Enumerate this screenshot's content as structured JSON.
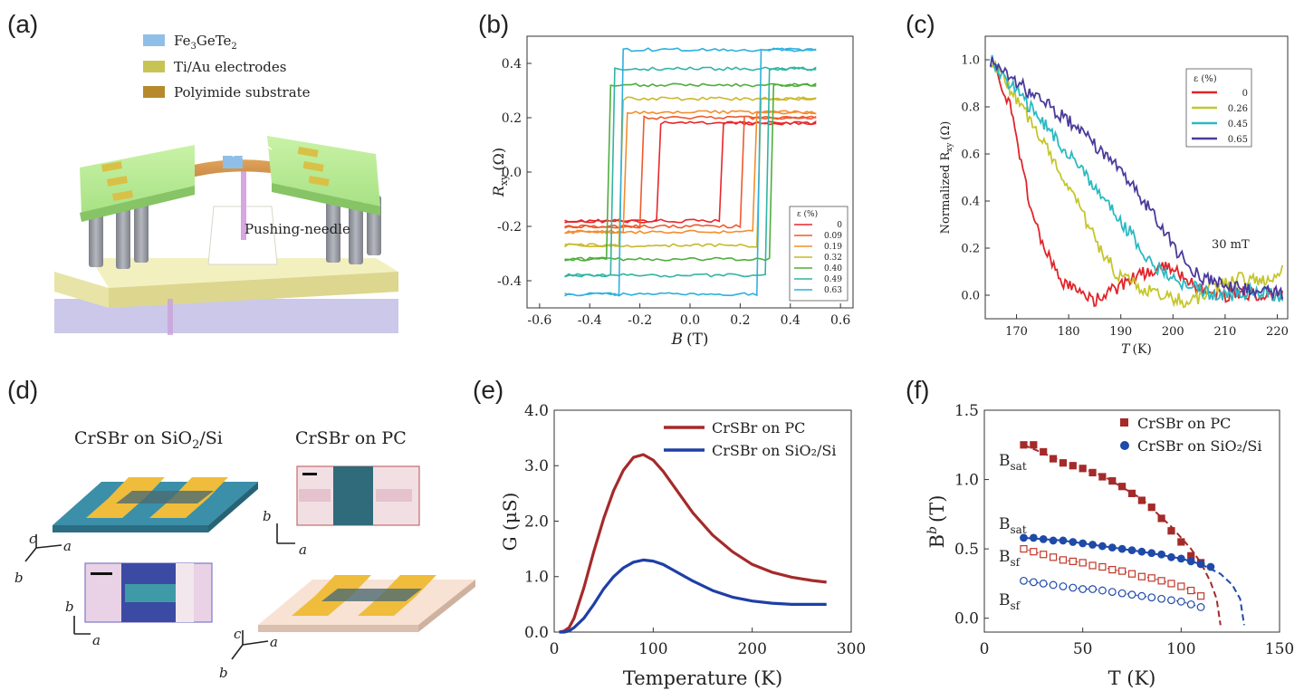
{
  "panels": {
    "a": {
      "label": "(a)",
      "legend": [
        {
          "text": "Fe3GeTe2",
          "parts": [
            "Fe",
            "3",
            "GeTe",
            "2"
          ],
          "color": "#8fbfe8"
        },
        {
          "text": "Ti/Au electrodes",
          "color": "#c7c456"
        },
        {
          "text": "Polyimide substrate",
          "color": "#b68a2c"
        }
      ],
      "needle_label": "Pushing-needle"
    },
    "d": {
      "label": "(d)",
      "title_left": "CrSBr on SiO2/Si",
      "title_left_parts": [
        "CrSBr on SiO",
        "2",
        "/Si"
      ],
      "title_right": "CrSBr on PC",
      "axes": {
        "a": "a",
        "b": "b",
        "c": "c"
      }
    }
  },
  "chart_data": [
    {
      "panel": "(b)",
      "type": "line",
      "xlabel_main": "B",
      "xlabel_unit": "(T)",
      "ylabel_main": "R",
      "ylabel_sub": "xy",
      "ylabel_unit": "(Ω)",
      "xlim": [
        -0.65,
        0.65
      ],
      "ylim": [
        -0.5,
        0.5
      ],
      "xticks": [
        "-0.6",
        "-0.4",
        "-0.2",
        "0.0",
        "0.2",
        "0.4",
        "0.6"
      ],
      "yticks": [
        "-0.4",
        "-0.2",
        "0.0",
        "0.2",
        "0.4"
      ],
      "legend_title": "ε (%)",
      "series": [
        {
          "name": "0",
          "color": "#e8262b",
          "coercive": 0.12,
          "saturation": 0.18
        },
        {
          "name": "0.09",
          "color": "#ee5a2e",
          "coercive": 0.2,
          "saturation": 0.2
        },
        {
          "name": "0.19",
          "color": "#f28d2f",
          "coercive": 0.26,
          "saturation": 0.22
        },
        {
          "name": "0.32",
          "color": "#c9b92c",
          "coercive": 0.28,
          "saturation": 0.27
        },
        {
          "name": "0.40",
          "color": "#4fae3c",
          "coercive": 0.33,
          "saturation": 0.32
        },
        {
          "name": "0.49",
          "color": "#30b4a4",
          "coercive": 0.31,
          "saturation": 0.38
        },
        {
          "name": "0.63",
          "color": "#2fb0dc",
          "coercive": 0.28,
          "saturation": 0.45
        }
      ]
    },
    {
      "panel": "(c)",
      "type": "line",
      "xlabel_main": "T",
      "xlabel_unit": "(K)",
      "ylabel_main": "Normalized R",
      "ylabel_sub": "xy",
      "ylabel_unit": "(Ω)",
      "xlim": [
        164,
        222
      ],
      "ylim": [
        -0.1,
        1.1
      ],
      "xticks": [
        "170",
        "180",
        "190",
        "200",
        "210",
        "220"
      ],
      "yticks": [
        "0.0",
        "0.2",
        "0.4",
        "0.6",
        "0.8",
        "1.0"
      ],
      "legend_title": "ε (%)",
      "annotation": "30 mT",
      "series": [
        {
          "name": "0",
          "color": "#e0252a",
          "x": [
            165,
            167,
            169,
            171,
            173,
            175,
            177,
            179,
            181,
            183,
            185,
            187,
            190,
            195,
            200,
            205,
            210,
            215,
            221
          ],
          "y": [
            1.0,
            0.9,
            0.78,
            0.55,
            0.35,
            0.22,
            0.12,
            0.05,
            0.02,
            0.0,
            -0.02,
            0.0,
            0.04,
            0.1,
            0.12,
            0.02,
            0.0,
            0.01,
            0.0
          ]
        },
        {
          "name": "0.26",
          "color": "#c5c62d",
          "x": [
            165,
            168,
            171,
            174,
            177,
            180,
            183,
            186,
            189,
            192,
            195,
            198,
            201,
            204,
            207,
            210,
            213,
            216,
            219,
            221
          ],
          "y": [
            1.0,
            0.9,
            0.8,
            0.7,
            0.58,
            0.46,
            0.33,
            0.2,
            0.1,
            0.05,
            0.02,
            0.0,
            -0.02,
            -0.03,
            0.03,
            0.05,
            0.07,
            0.06,
            0.08,
            0.1
          ]
        },
        {
          "name": "0.45",
          "color": "#2bb9c3",
          "x": [
            165,
            168,
            171,
            174,
            177,
            180,
            183,
            186,
            189,
            192,
            195,
            198,
            201,
            204,
            207,
            210,
            213,
            216,
            219,
            221
          ],
          "y": [
            1.0,
            0.92,
            0.84,
            0.76,
            0.68,
            0.6,
            0.52,
            0.43,
            0.34,
            0.26,
            0.16,
            0.1,
            0.05,
            0.03,
            0.01,
            0.0,
            0.01,
            0.02,
            0.0,
            0.0
          ]
        },
        {
          "name": "0.65",
          "color": "#4b3a9c",
          "x": [
            165,
            168,
            171,
            174,
            177,
            180,
            183,
            186,
            189,
            192,
            195,
            198,
            201,
            204,
            207,
            210,
            213,
            216,
            219,
            221
          ],
          "y": [
            1.0,
            0.95,
            0.89,
            0.84,
            0.79,
            0.74,
            0.68,
            0.62,
            0.55,
            0.47,
            0.38,
            0.28,
            0.18,
            0.1,
            0.06,
            0.04,
            0.03,
            0.02,
            0.01,
            0.0
          ]
        }
      ]
    },
    {
      "panel": "(e)",
      "type": "line",
      "xlabel": "Temperature (K)",
      "ylabel": "G (μS)",
      "xlim": [
        0,
        300
      ],
      "ylim": [
        0,
        4.0
      ],
      "xticks": [
        "0",
        "100",
        "200",
        "300"
      ],
      "yticks": [
        "0.0",
        "1.0",
        "2.0",
        "3.0",
        "4.0"
      ],
      "series": [
        {
          "name": "CrSBr on PC",
          "color": "#a52a2a",
          "x": [
            5,
            10,
            15,
            20,
            30,
            40,
            50,
            60,
            70,
            80,
            90,
            100,
            110,
            120,
            140,
            160,
            180,
            200,
            220,
            240,
            260,
            275
          ],
          "y": [
            0.0,
            0.02,
            0.08,
            0.25,
            0.8,
            1.45,
            2.05,
            2.55,
            2.92,
            3.15,
            3.2,
            3.1,
            2.9,
            2.65,
            2.15,
            1.75,
            1.45,
            1.22,
            1.08,
            0.99,
            0.93,
            0.9
          ]
        },
        {
          "name": "CrSBr on SiO₂/Si",
          "color": "#1f3fa6",
          "x": [
            5,
            10,
            15,
            20,
            30,
            40,
            50,
            60,
            70,
            80,
            90,
            100,
            110,
            120,
            140,
            160,
            180,
            200,
            220,
            240,
            260,
            275
          ],
          "y": [
            0.0,
            0.0,
            0.02,
            0.08,
            0.25,
            0.5,
            0.78,
            1.0,
            1.16,
            1.26,
            1.3,
            1.28,
            1.22,
            1.12,
            0.92,
            0.75,
            0.63,
            0.56,
            0.52,
            0.5,
            0.5,
            0.5
          ]
        }
      ]
    },
    {
      "panel": "(f)",
      "type": "scatter",
      "xlabel": "T (K)",
      "ylabel": "B^b (T)",
      "ylabel_main": "B",
      "ylabel_sup": "b",
      "ylabel_unit": "(T)",
      "xlim": [
        0,
        150
      ],
      "ylim": [
        -0.1,
        1.5
      ],
      "xticks": [
        "0",
        "50",
        "100",
        "150"
      ],
      "yticks": [
        "0.0",
        "0.5",
        "1.0",
        "1.5"
      ],
      "legend": [
        "CrSBr on PC",
        "CrSBr on SiO₂/Si"
      ],
      "annotations": [
        {
          "main": "B",
          "sub": "sat",
          "color": "#a52a2a"
        },
        {
          "main": "B",
          "sub": "sat",
          "color": "#1f3fa6"
        },
        {
          "main": "B",
          "sub": "sf",
          "color": "#e58a8a"
        },
        {
          "main": "B",
          "sub": "sf",
          "color": "#5bb6e0"
        }
      ],
      "series": [
        {
          "name": "CrSBr on PC",
          "kind": "sat",
          "marker": "filled-square",
          "color": "#a52a2a",
          "x": [
            20,
            25,
            30,
            35,
            40,
            45,
            50,
            55,
            60,
            65,
            70,
            75,
            80,
            85,
            90,
            95,
            100,
            105,
            110
          ],
          "y": [
            1.25,
            1.25,
            1.2,
            1.15,
            1.12,
            1.1,
            1.08,
            1.05,
            1.02,
            0.99,
            0.95,
            0.9,
            0.85,
            0.8,
            0.72,
            0.63,
            0.55,
            0.45,
            0.4
          ],
          "fit_x": [
            20,
            40,
            60,
            80,
            95,
            105,
            110,
            115,
            118,
            120
          ],
          "fit_y": [
            1.25,
            1.13,
            1.03,
            0.86,
            0.66,
            0.5,
            0.4,
            0.26,
            0.14,
            -0.05
          ]
        },
        {
          "name": "CrSBr on SiO₂/Si",
          "kind": "sat",
          "marker": "filled-circle",
          "color": "#1f4aa8",
          "x": [
            20,
            25,
            30,
            35,
            40,
            45,
            50,
            55,
            60,
            65,
            70,
            75,
            80,
            85,
            90,
            95,
            100,
            105,
            110,
            115
          ],
          "y": [
            0.58,
            0.58,
            0.57,
            0.56,
            0.56,
            0.55,
            0.54,
            0.53,
            0.52,
            0.51,
            0.5,
            0.49,
            0.48,
            0.47,
            0.46,
            0.44,
            0.43,
            0.41,
            0.39,
            0.37
          ],
          "fit_x": [
            20,
            40,
            60,
            80,
            100,
            110,
            120,
            126,
            130,
            132
          ],
          "fit_y": [
            0.58,
            0.56,
            0.52,
            0.48,
            0.43,
            0.39,
            0.32,
            0.24,
            0.14,
            -0.05
          ]
        },
        {
          "name": "CrSBr on PC",
          "kind": "sf",
          "marker": "open-square",
          "color": "#c0392b",
          "x": [
            20,
            25,
            30,
            35,
            40,
            45,
            50,
            55,
            60,
            65,
            70,
            75,
            80,
            85,
            90,
            95,
            100,
            105,
            110
          ],
          "y": [
            0.5,
            0.48,
            0.46,
            0.44,
            0.42,
            0.41,
            0.4,
            0.38,
            0.37,
            0.35,
            0.34,
            0.32,
            0.3,
            0.29,
            0.27,
            0.25,
            0.23,
            0.2,
            0.16
          ]
        },
        {
          "name": "CrSBr on SiO₂/Si",
          "kind": "sf",
          "marker": "open-circle",
          "color": "#1f4aa8",
          "x": [
            20,
            25,
            30,
            35,
            40,
            45,
            50,
            55,
            60,
            65,
            70,
            75,
            80,
            85,
            90,
            95,
            100,
            105,
            110
          ],
          "y": [
            0.27,
            0.26,
            0.25,
            0.24,
            0.23,
            0.22,
            0.21,
            0.21,
            0.2,
            0.19,
            0.18,
            0.17,
            0.16,
            0.15,
            0.14,
            0.13,
            0.12,
            0.1,
            0.08
          ]
        }
      ]
    }
  ]
}
